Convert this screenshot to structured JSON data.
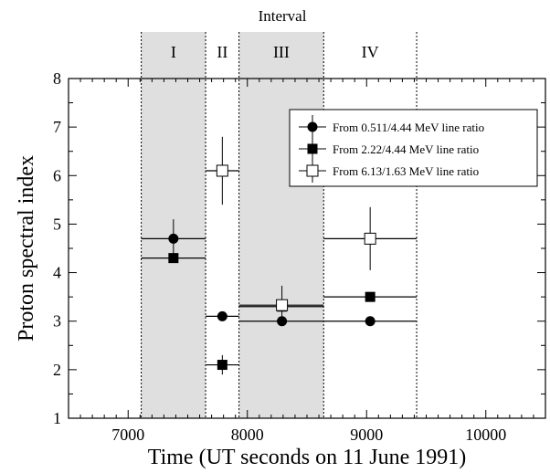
{
  "chart_data": {
    "type": "scatter",
    "title": "Interval",
    "xlabel": "Time (UT seconds on 11 June 1991)",
    "ylabel": "Proton spectral index",
    "xlim": [
      6500,
      10500
    ],
    "ylim": [
      1,
      8
    ],
    "x_ticks": [
      7000,
      8000,
      9000,
      10000
    ],
    "y_ticks": [
      1,
      2,
      3,
      4,
      5,
      6,
      7,
      8
    ],
    "grid": false,
    "legend_position": "top-right",
    "intervals": [
      {
        "label": "I",
        "start": 7110,
        "end": 7650,
        "shaded": true
      },
      {
        "label": "II",
        "start": 7650,
        "end": 7930,
        "shaded": false
      },
      {
        "label": "III",
        "start": 7930,
        "end": 8640,
        "shaded": true
      },
      {
        "label": "IV",
        "start": 8640,
        "end": 9420,
        "shaded": false
      }
    ],
    "series": [
      {
        "name": "From 0.511/4.44 MeV line ratio",
        "marker": "filled-circle",
        "points": [
          {
            "x": 7380,
            "xmin": 7110,
            "xmax": 7650,
            "y": 4.7,
            "yerr": 0.4
          },
          {
            "x": 7790,
            "xmin": 7650,
            "xmax": 7930,
            "y": 3.1,
            "yerr": 0
          },
          {
            "x": 8290,
            "xmin": 7930,
            "xmax": 8640,
            "y": 3.0,
            "yerr": 0
          },
          {
            "x": 9030,
            "xmin": 8640,
            "xmax": 9420,
            "y": 3.0,
            "yerr": 0
          }
        ]
      },
      {
        "name": "From 2.22/4.44 MeV line ratio",
        "marker": "filled-square",
        "points": [
          {
            "x": 7380,
            "xmin": 7110,
            "xmax": 7650,
            "y": 4.3,
            "yerr": 0
          },
          {
            "x": 7790,
            "xmin": 7650,
            "xmax": 7930,
            "y": 2.1,
            "yerr": 0.2
          },
          {
            "x": 8290,
            "xmin": 7930,
            "xmax": 8640,
            "y": 3.3,
            "yerr": 0
          },
          {
            "x": 9030,
            "xmin": 8640,
            "xmax": 9420,
            "y": 3.5,
            "yerr": 0
          }
        ]
      },
      {
        "name": "From 6.13/1.63 MeV line ratio",
        "marker": "open-square",
        "points": [
          {
            "x": 7790,
            "xmin": 7650,
            "xmax": 7930,
            "y": 6.1,
            "yerr": 0.7
          },
          {
            "x": 8290,
            "xmin": 7930,
            "xmax": 8640,
            "y": 3.33,
            "yerr": 0.4
          },
          {
            "x": 9030,
            "xmin": 8640,
            "xmax": 9420,
            "y": 4.7,
            "yerr": 0.65
          }
        ]
      }
    ]
  }
}
